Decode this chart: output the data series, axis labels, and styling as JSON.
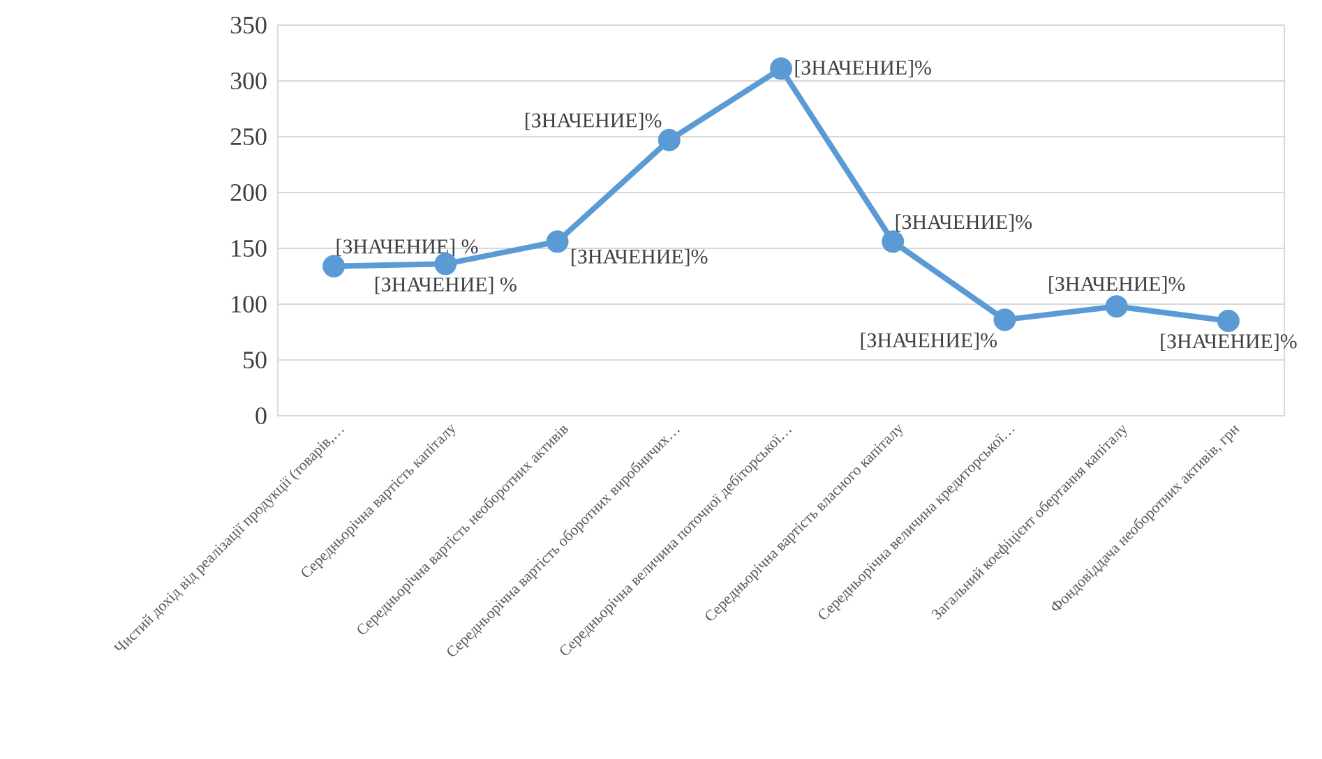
{
  "chart_data": {
    "type": "line",
    "categories": [
      "Чистий дохід від реалізації продукції (товарів,…",
      "Середньорічна вартість капіталу",
      "Середньорічна вартість необоротних активів",
      "Середньорічна вартість оборотних виробничих…",
      "Середньорічна величина поточної дебіторської…",
      "Середньорічна вартість власного капіталу",
      "Середньорічна величина кредиторської…",
      "Загальний коефіцієнт обертання капіталу",
      "Фондовіддача необоротних активів, грн"
    ],
    "values": [
      134,
      136,
      156,
      247,
      311,
      156,
      86,
      98,
      85
    ],
    "value_labels": [
      "[ЗНАЧЕНИЕ] %",
      "[ЗНАЧЕНИЕ] %",
      "[ЗНАЧЕНИЕ]%",
      "[ЗНАЧЕНИЕ]%",
      "[ЗНАЧЕНИЕ]%",
      "[ЗНАЧЕНИЕ]%",
      "[ЗНАЧЕНИЕ]%",
      "[ЗНАЧЕНИЕ]%",
      "[ЗНАЧЕНИЕ]%"
    ],
    "color": "#5b9bd5",
    "ylim": [
      0,
      350
    ],
    "yticks": [
      0,
      50,
      100,
      150,
      200,
      250,
      300,
      350
    ],
    "grid": "y",
    "marker": "circle",
    "line_style": "solid"
  }
}
